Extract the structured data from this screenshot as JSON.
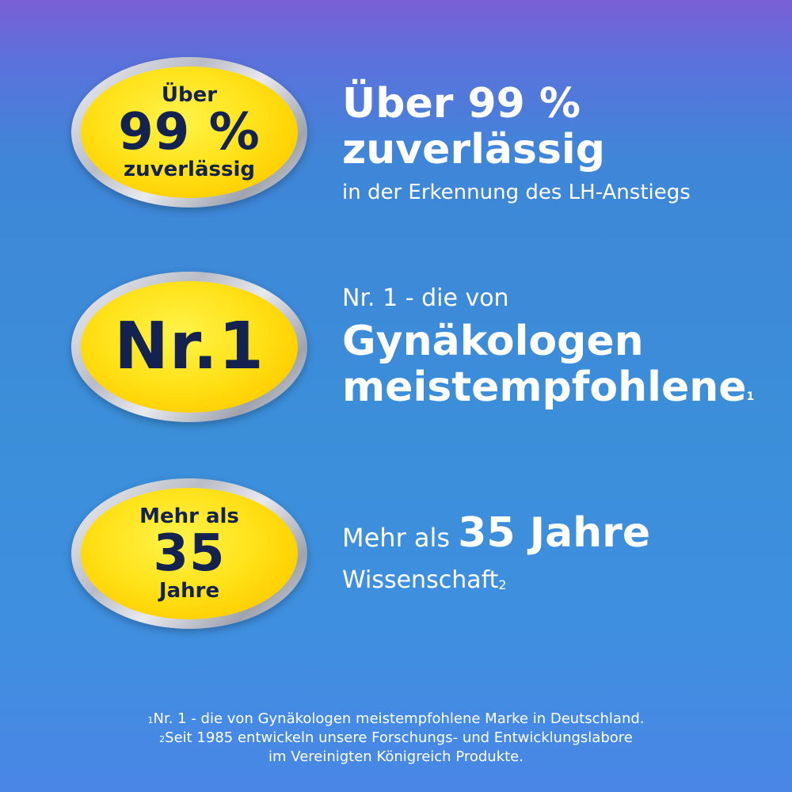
{
  "badges": [
    {
      "line1": "Über",
      "line2": "99 %",
      "line3": "zuverlässig"
    },
    {
      "main": "Nr.1"
    },
    {
      "line1": "Mehr als",
      "line2": "35",
      "line3": "Jahre"
    }
  ],
  "block1": {
    "title_line1": "Über 99 %",
    "title_line2": "zuverlässig",
    "subtitle": "in der Erkennung des LH-Anstiegs"
  },
  "block2": {
    "intro": "Nr. 1 - die von",
    "bold_line1": "Gynäkologen",
    "bold_line2": "meistempfohlene",
    "note_marker": "1"
  },
  "block3": {
    "prefix": "Mehr als ",
    "bold": "35 Jahre",
    "line2": "Wissenschaft",
    "note_marker": "2"
  },
  "footnotes": [
    {
      "marker": "1",
      "text": "Nr. 1 - die von Gynäkologen meistempfohlene Marke in Deutschland."
    },
    {
      "marker": "2",
      "text": "Seit 1985 entwickeln unsere Forschungs- und Entwicklungslabore"
    },
    {
      "marker": "",
      "text": "im Vereinigten Königreich Produkte."
    }
  ],
  "colors": {
    "badge_text": "#13224e",
    "badge_fill": "#ffe21a",
    "text": "#ffffff"
  }
}
